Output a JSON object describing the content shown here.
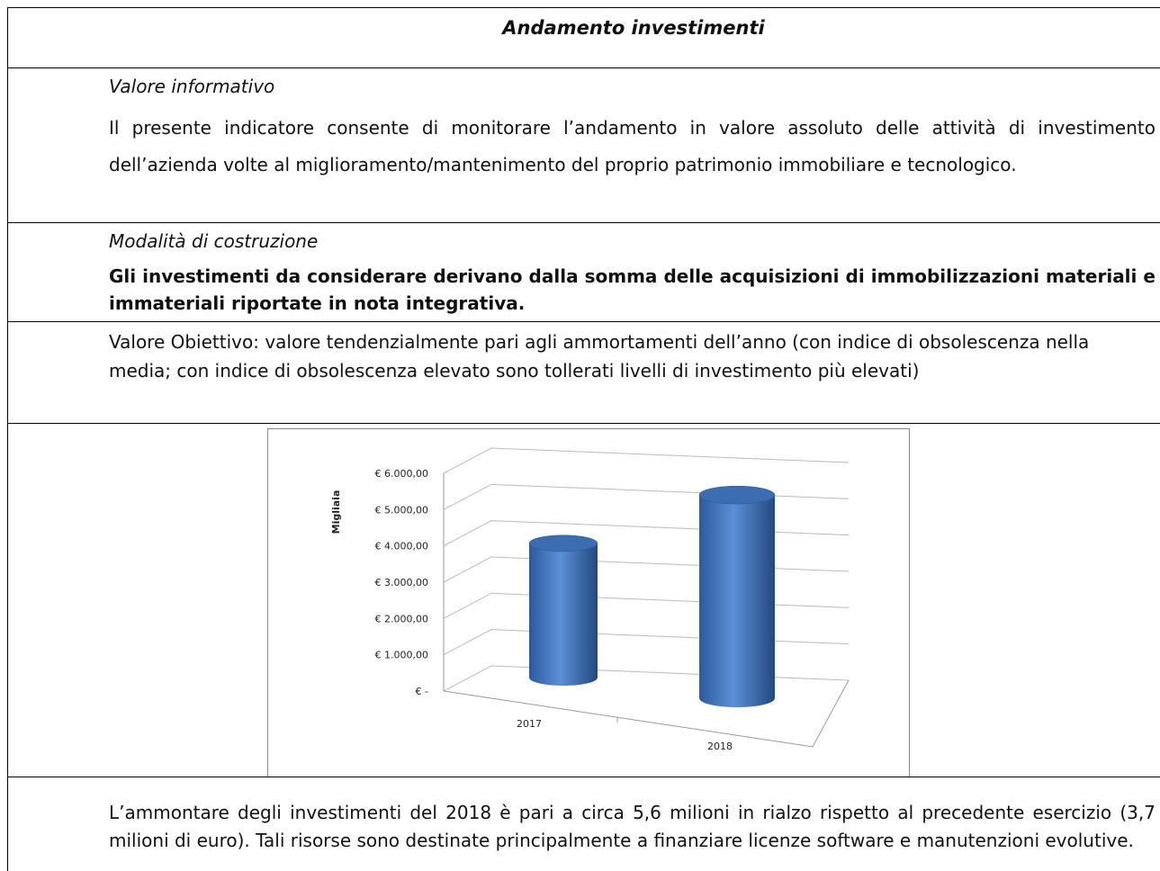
{
  "title": "Andamento investimenti",
  "sections": [
    {
      "heading": "Valore informativo",
      "text": "Il presente indicatore consente di monitorare l’andamento in valore assoluto delle attività di investimento dell’azienda volte al miglioramento/mantenimento del proprio patrimonio immobiliare e tecnologico."
    },
    {
      "heading": "Modalità di costruzione",
      "text": "Gli investimenti da considerare derivano dalla somma delle acquisizioni di immobilizzazioni materiali e immateriali riportate in nota integrativa."
    }
  ],
  "objective": "Valore Obiettivo: valore tendenzialmente pari agli ammortamenti dell’anno (con indice di obsolescenza nella media; con indice di obsolescenza elevato sono tollerati livelli di investimento più elevati)",
  "chart_data": {
    "type": "bar3d",
    "ylabel": "Migliaia",
    "categories": [
      "2017",
      "2018"
    ],
    "values": [
      3700,
      5600
    ],
    "color": "#4a7ec4",
    "ylim": [
      0,
      6000
    ],
    "yticks": [
      {
        "value": 0,
        "label": "€ -"
      },
      {
        "value": 1000,
        "label": "€ 1.000,00"
      },
      {
        "value": 2000,
        "label": "€ 2.000,00"
      },
      {
        "value": 3000,
        "label": "€ 3.000,00"
      },
      {
        "value": 4000,
        "label": "€ 4.000,00"
      },
      {
        "value": 5000,
        "label": "€ 5.000,00"
      },
      {
        "value": 6000,
        "label": "€ 6.000,00"
      }
    ],
    "grid": true
  },
  "comment": "L’ammontare degli investimenti del 2018 è pari a circa 5,6 milioni in rialzo rispetto al precedente esercizio (3,7 milioni di euro). Tali risorse sono destinate principalmente a finanziare licenze software e manutenzioni evolutive."
}
